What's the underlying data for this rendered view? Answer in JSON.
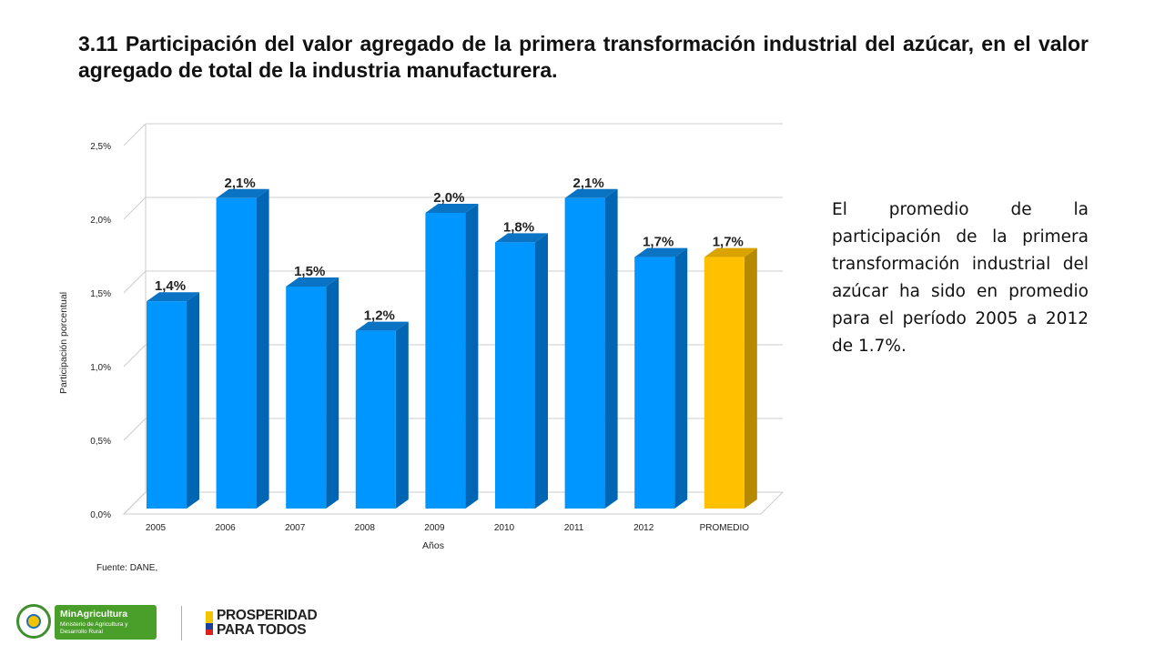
{
  "title": "3.11 Participación del valor agregado de la primera transformación industrial del azúcar, en el valor agregado de total de la industria manufacturera.",
  "side_text": "El promedio de la participación de la primera transformación industrial del azúcar ha sido en promedio para el período 2005 a 2012 de 1.7%.",
  "source": "Fuente: DANE,",
  "footer": {
    "ministry_name": "MinAgricultura",
    "ministry_sub": "Ministerio de Agricultura y Desarrollo Rural",
    "slogan_line1": "PROSPERIDAD",
    "slogan_line2": "PARA TODOS"
  },
  "colors": {
    "bar": "#0096ff",
    "bar_side": "#0066b3",
    "bar_top": "#0a73c4",
    "highlight": "#ffc000",
    "highlight_side": "#b58900",
    "highlight_top": "#d9a300",
    "grid": "#cccccc"
  },
  "chart_data": {
    "type": "bar",
    "categories": [
      "2005",
      "2006",
      "2007",
      "2008",
      "2009",
      "2010",
      "2011",
      "2012",
      "PROMEDIO"
    ],
    "values": [
      1.4,
      2.1,
      1.5,
      1.2,
      2.0,
      1.8,
      2.1,
      1.7,
      1.7
    ],
    "data_labels": [
      "1,4%",
      "2,1%",
      "1,5%",
      "1,2%",
      "2,0%",
      "1,8%",
      "2,1%",
      "1,7%",
      "1,7%"
    ],
    "highlight_category": "PROMEDIO",
    "y_ticks": [
      "0,0%",
      "0,5%",
      "1,0%",
      "1,5%",
      "2,0%",
      "2,5%"
    ],
    "xlabel": "Años",
    "ylabel": "Participación porcentual",
    "ylim": [
      0,
      2.5
    ],
    "grid": true,
    "three_d": true
  }
}
